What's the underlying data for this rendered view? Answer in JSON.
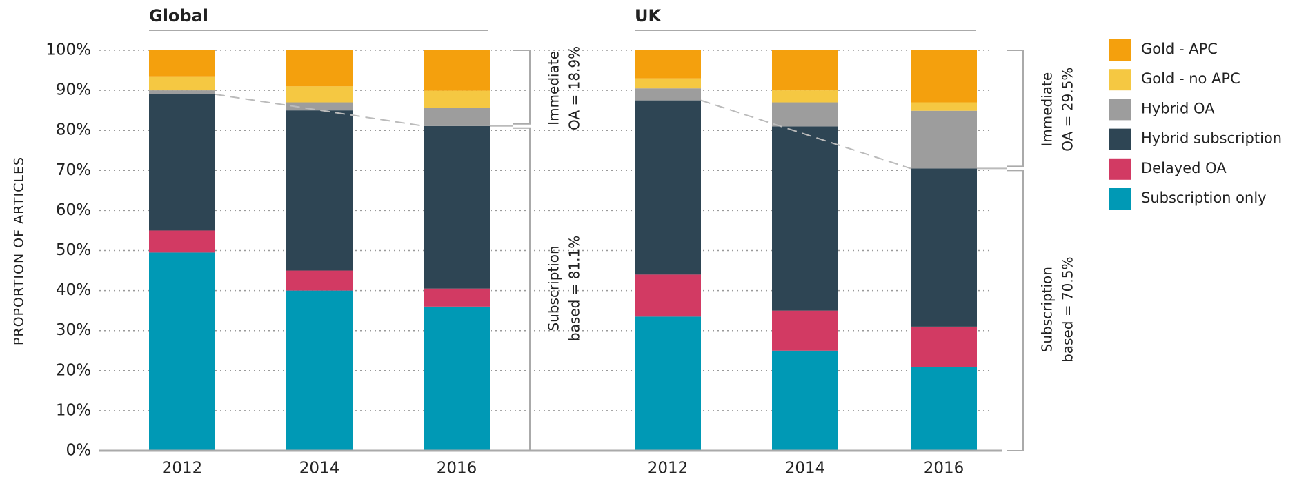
{
  "chart_data": {
    "type": "bar",
    "stacked": true,
    "y_label": "PROPORTION OF ARTICLES",
    "ylim": [
      0,
      100
    ],
    "yticks": [
      {
        "value": 0,
        "label": "0%"
      },
      {
        "value": 10,
        "label": "10%"
      },
      {
        "value": 20,
        "label": "20%"
      },
      {
        "value": 30,
        "label": "30%"
      },
      {
        "value": 40,
        "label": "40%"
      },
      {
        "value": 50,
        "label": "50%"
      },
      {
        "value": 60,
        "label": "60%"
      },
      {
        "value": 70,
        "label": "70%"
      },
      {
        "value": 80,
        "label": "80%"
      },
      {
        "value": 90,
        "label": "90%"
      },
      {
        "value": 100,
        "label": "100%"
      }
    ],
    "grid": true,
    "legend": "right",
    "series": [
      {
        "name": "Subscription only",
        "color": "#0099b5"
      },
      {
        "name": "Delayed OA",
        "color": "#d23a63"
      },
      {
        "name": "Hybrid subscription",
        "color": "#2e4554"
      },
      {
        "name": "Hybrid OA",
        "color": "#9d9d9d"
      },
      {
        "name": "Gold - no APC",
        "color": "#f5c842"
      },
      {
        "name": "Gold - APC",
        "color": "#f4a00d"
      }
    ],
    "panels": [
      {
        "title": "Global",
        "categories": [
          "2012",
          "2014",
          "2016"
        ],
        "values": [
          [
            49.5,
            40,
            36
          ],
          [
            5.5,
            5,
            4.5
          ],
          [
            34,
            40,
            40.6
          ],
          [
            1,
            2,
            4.6
          ],
          [
            3.5,
            4,
            4.2
          ],
          [
            6.5,
            9,
            10.1
          ]
        ],
        "annotations": [
          [
            "Immediate",
            "OA = 18.9%"
          ],
          [
            "Subscription",
            "based = 81.1%"
          ]
        ]
      },
      {
        "title": "UK",
        "categories": [
          "2012",
          "2014",
          "2016"
        ],
        "values": [
          [
            33.5,
            25,
            21
          ],
          [
            10.5,
            10,
            10
          ],
          [
            43.5,
            46,
            39.5
          ],
          [
            3,
            6,
            14.4
          ],
          [
            2.5,
            3,
            2.1
          ],
          [
            7,
            10,
            13
          ]
        ],
        "annotations": [
          [
            "Immediate",
            "OA = 29.5%"
          ],
          [
            "Subscription",
            "based = 70.5%"
          ]
        ]
      }
    ]
  }
}
